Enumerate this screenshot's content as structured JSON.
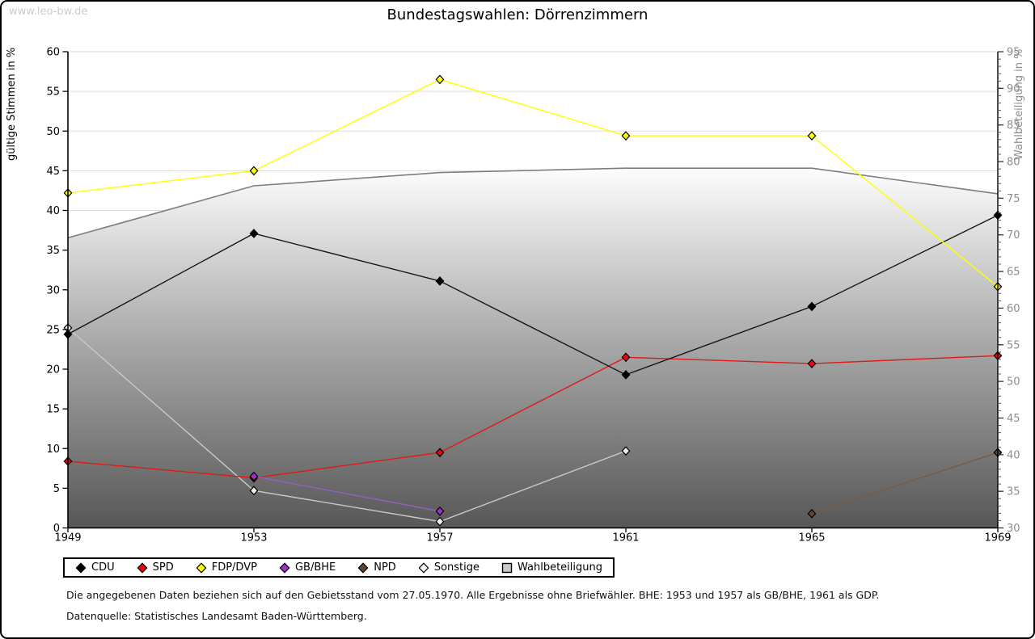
{
  "watermark": "www.leo-bw.de",
  "title": "Bundestagswahlen: Dörrenzimmern",
  "notes": {
    "line1": "Die angegebenen Daten beziehen sich auf den Gebietsstand vom 27.05.1970. Alle Ergebnisse ohne Briefwähler. BHE: 1953 und 1957 als GB/BHE, 1961 als GDP.",
    "line2": "Datenquelle: Statistisches Landesamt Baden-Württemberg."
  },
  "chart_data": {
    "type": "line",
    "title": "Bundestagswahlen: Dörrenzimmern",
    "x": [
      "1949",
      "1953",
      "1957",
      "1961",
      "1965",
      "1969"
    ],
    "left_axis": {
      "label": "gültige Stimmen in %",
      "min": 0,
      "max": 60,
      "tick_step": 5
    },
    "right_axis": {
      "label": "Wahlbeteiligung in %",
      "min": 30,
      "max": 95,
      "tick_step": 5,
      "minor_tick_step": 1,
      "color": "#8c8c8c"
    },
    "grid": true,
    "gridline_color": "#dedede",
    "legend_position": "bottom",
    "series": [
      {
        "name": "CDU",
        "axis": "left",
        "marker": "diamond",
        "color": "#000000",
        "line_color": "#151515",
        "values": [
          24.4,
          37.1,
          31.1,
          19.3,
          27.9,
          39.4
        ]
      },
      {
        "name": "SPD",
        "axis": "left",
        "marker": "diamond",
        "color": "#e30613",
        "line_color": "#e01919",
        "values": [
          8.4,
          6.3,
          9.5,
          21.5,
          20.7,
          21.7
        ]
      },
      {
        "name": "FDP/DVP",
        "axis": "left",
        "marker": "diamond",
        "color": "#ffff00",
        "line_color": "#ffff00",
        "values": [
          42.2,
          45,
          56.5,
          49.4,
          49.4,
          30.4
        ]
      },
      {
        "name": "GB/BHE",
        "axis": "left",
        "marker": "diamond",
        "color": "#9933cc",
        "line_color": "#9460c6",
        "values": [
          null,
          6.5,
          2.1,
          null,
          null,
          null
        ]
      },
      {
        "name": "NPD",
        "axis": "left",
        "marker": "diamond",
        "color": "#5f4632",
        "line_color": "#7a5a3e",
        "values": [
          null,
          null,
          null,
          null,
          1.8,
          9.5
        ]
      },
      {
        "name": "Sonstige",
        "axis": "left",
        "marker": "diamond",
        "color": "#f0f0f0",
        "line_color": "#c9c9c9",
        "values": [
          25.2,
          4.7,
          0.8,
          9.7,
          null,
          null
        ]
      },
      {
        "name": "Wahlbeteiligung",
        "axis": "right",
        "type": "area",
        "marker": "square",
        "edge_color": "#7d7d7d",
        "fill_top": "#fdfdfd",
        "fill_mid": "#a6a6a6",
        "fill_bottom": "#575757",
        "legend_color": "#c9c9c9",
        "values": [
          69.6,
          76.7,
          78.5,
          79.1,
          79.1,
          75.6
        ]
      }
    ]
  }
}
